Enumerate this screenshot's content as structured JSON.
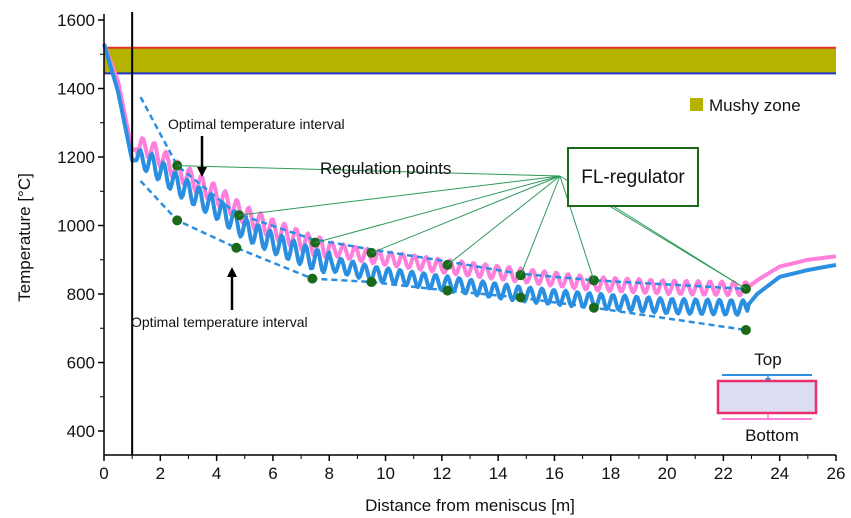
{
  "chart_data": {
    "type": "line",
    "xlabel": "Distance from meniscus [m]",
    "ylabel": "Temperature [°C]",
    "xlim": [
      0,
      26
    ],
    "ylim": [
      330,
      1600
    ],
    "x_ticks": [
      0,
      2,
      4,
      6,
      8,
      10,
      12,
      14,
      16,
      18,
      20,
      22,
      24,
      26
    ],
    "x_tick_labels": [
      "0",
      "2",
      "4",
      "6",
      "8",
      "10",
      "12",
      "14",
      "16",
      "18",
      "20",
      "22",
      "24",
      "26"
    ],
    "y_ticks": [
      400,
      600,
      800,
      1000,
      1200,
      1400,
      1600
    ],
    "y_tick_labels": [
      "400",
      "600",
      "800",
      "1000",
      "1200",
      "1400",
      "1600"
    ],
    "grid": false,
    "mold_exit_line_x": 1.0,
    "mushy_zone": {
      "label": "Mushy zone",
      "liquidus": 1519,
      "solidus": 1444,
      "fill_color": "#b5b200",
      "liquidus_color": "#e8302a",
      "solidus_color": "#2233cc"
    },
    "series": [
      {
        "color": "#ff7fdc",
        "x": [
          0.0,
          0.5,
          1.0,
          1.5,
          2.0,
          2.6,
          3.0,
          4.0,
          5.0,
          6.0,
          7.5,
          9.5,
          12.2,
          14.8,
          17.4,
          20.0,
          22.8,
          23.2,
          24.0,
          25.0,
          26.0
        ],
        "y": [
          1530,
          1420,
          1220,
          1230,
          1200,
          1160,
          1140,
          1090,
          1030,
          990,
          940,
          910,
          880,
          855,
          830,
          820,
          815,
          840,
          880,
          900,
          910
        ]
      },
      {
        "color": "#2a8fe0",
        "x": [
          0.0,
          0.5,
          1.0,
          1.5,
          2.0,
          2.6,
          3.0,
          4.0,
          5.0,
          6.0,
          7.5,
          9.5,
          12.2,
          14.8,
          17.4,
          20.0,
          22.8,
          23.2,
          24.0,
          25.0,
          26.0
        ],
        "y": [
          1530,
          1390,
          1190,
          1190,
          1160,
          1120,
          1100,
          1050,
          990,
          950,
          900,
          860,
          830,
          800,
          780,
          765,
          760,
          800,
          850,
          870,
          885
        ]
      }
    ],
    "interval_bounds": [
      {
        "x": [
          1.3,
          2.6,
          4.7,
          7.4,
          9.5,
          12.2,
          14.7,
          17.4,
          22.8
        ],
        "y": [
          1375,
          1175,
          1035,
          960,
          930,
          895,
          860,
          840,
          815
        ]
      },
      {
        "x": [
          1.3,
          2.6,
          4.7,
          7.4,
          9.5,
          12.2,
          14.7,
          17.4,
          22.8
        ],
        "y": [
          1130,
          1015,
          935,
          845,
          835,
          810,
          790,
          760,
          695
        ]
      }
    ],
    "regulation_points": [
      {
        "x": 2.6,
        "y": 1175
      },
      {
        "x": 4.8,
        "y": 1030
      },
      {
        "x": 7.5,
        "y": 950
      },
      {
        "x": 9.5,
        "y": 920
      },
      {
        "x": 12.2,
        "y": 885
      },
      {
        "x": 14.8,
        "y": 855
      },
      {
        "x": 17.4,
        "y": 840
      },
      {
        "x": 22.8,
        "y": 815
      },
      {
        "x": 2.6,
        "y": 1015
      },
      {
        "x": 4.7,
        "y": 935
      },
      {
        "x": 7.4,
        "y": 845
      },
      {
        "x": 9.5,
        "y": 835
      },
      {
        "x": 12.2,
        "y": 810
      },
      {
        "x": 14.8,
        "y": 790
      },
      {
        "x": 17.4,
        "y": 760
      },
      {
        "x": 22.8,
        "y": 695
      }
    ],
    "regulation_point_color": "#1a6a1a",
    "annotations": {
      "optimal_top": "Optimal temperature interval",
      "optimal_bottom": "Optimal temperature interval",
      "regulation_points": "Regulation points",
      "fl_regulator": "FL-regulator",
      "top": "Top",
      "bottom": "Bottom"
    },
    "fl_regulator_color": "#1a6a1a"
  }
}
